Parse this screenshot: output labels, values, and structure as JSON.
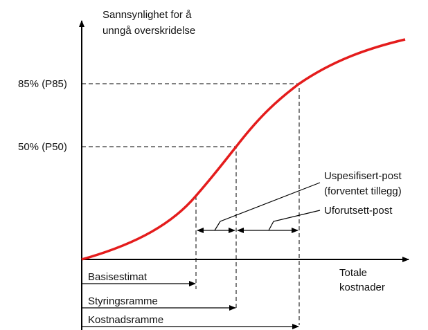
{
  "y_axis_label": [
    "Sannsynlighet for å",
    "unngå overskridelse"
  ],
  "x_axis_label": [
    "Totale",
    "kostnader"
  ],
  "levels": [
    "85% (P85)",
    "50% (P50)"
  ],
  "annotations": {
    "unspecified": [
      "Uspesifisert-post",
      "(forventet tillegg)"
    ],
    "contingency": "Uforutsett-post"
  },
  "ranges": [
    "Basisestimat",
    "Styringsramme",
    "Kostnadsramme"
  ]
}
